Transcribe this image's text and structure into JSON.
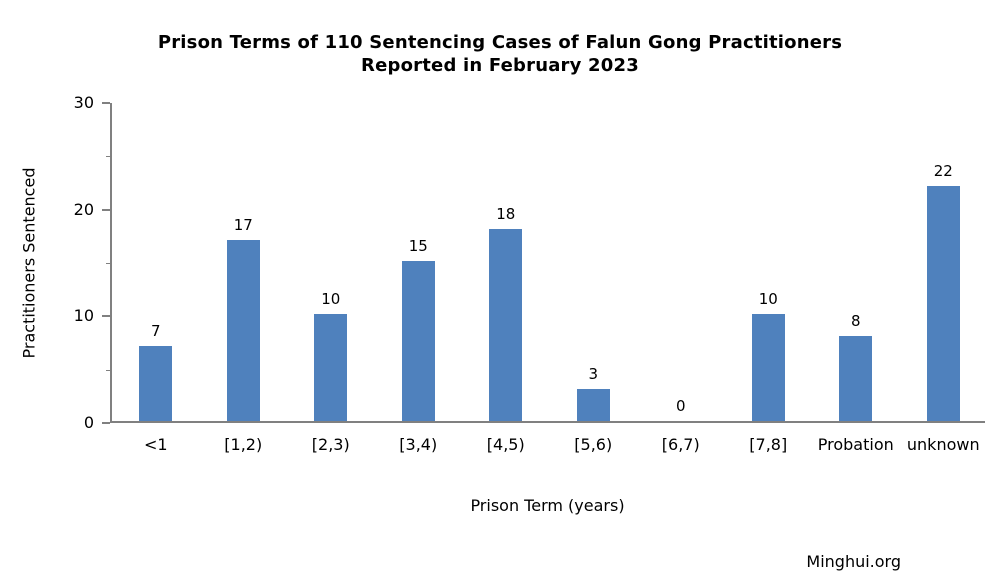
{
  "title": {
    "line1": "Prison Terms of 110 Sentencing Cases of Falun Gong Practitioners",
    "line2": "Reported in February 2023"
  },
  "credit": "Minghui.org",
  "chart_data": {
    "type": "bar",
    "title": "Prison Terms of 110 Sentencing Cases of Falun Gong Practitioners Reported in February 2023",
    "categories": [
      "<1",
      "[1,2)",
      "[2,3)",
      "[3,4)",
      "[4,5)",
      "[5,6)",
      "[6,7)",
      "[7,8]",
      "Probation",
      "unknown"
    ],
    "values": [
      7,
      17,
      10,
      15,
      18,
      3,
      0,
      10,
      8,
      22
    ],
    "xlabel": "Prison Term (years)",
    "ylabel": "Practitioners Sentenced",
    "ylim": [
      0,
      30
    ],
    "yticks": [
      0,
      10,
      20,
      30
    ],
    "yticks_minor": [
      5,
      15,
      25
    ],
    "grid": false,
    "legend": false,
    "data_labels": true,
    "bar_color": "#4f81bd",
    "axis_color": "#808080",
    "text_color": "#000000",
    "background_color": "#ffffff"
  }
}
